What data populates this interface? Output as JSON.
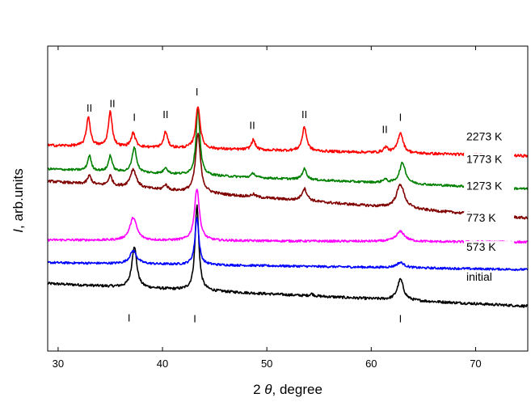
{
  "chart_data": {
    "type": "line",
    "title": "",
    "xlabel": "2 θ, degree",
    "xlabel_prefix": "2 ",
    "xlabel_symbol": "θ",
    "xlabel_suffix": ", degree",
    "ylabel": "I, arb.units",
    "ylabel_symbol": "I",
    "ylabel_suffix": ", arb.units",
    "xlim": [
      29,
      75
    ],
    "ylim": [
      0,
      7
    ],
    "xticks": [
      30,
      40,
      50,
      60,
      70
    ],
    "yticks_shown": false,
    "grid": false,
    "baseline_peak_shape": "lorentzian",
    "series": [
      {
        "name": "initial",
        "color": "#000000",
        "baseline_left": 1.55,
        "baseline_right": 1.03,
        "noise": 0.03,
        "peaks": [
          {
            "x": 37.3,
            "height": 0.95,
            "width": 0.28
          },
          {
            "x": 43.3,
            "height": 1.95,
            "width": 0.22
          },
          {
            "x": 54.3,
            "height": 0.05,
            "width": 0.2
          },
          {
            "x": 62.8,
            "height": 0.48,
            "width": 0.35
          }
        ]
      },
      {
        "name": "573 K",
        "color": "#0000ff",
        "baseline_left": 2.03,
        "baseline_right": 1.87,
        "noise": 0.025,
        "peaks": [
          {
            "x": 37.2,
            "height": 0.3,
            "width": 0.4
          },
          {
            "x": 43.3,
            "height": 1.1,
            "width": 0.22
          },
          {
            "x": 62.8,
            "height": 0.12,
            "width": 0.45
          }
        ]
      },
      {
        "name": "773 K",
        "color": "#ff00ff",
        "baseline_left": 2.55,
        "baseline_right": 2.5,
        "noise": 0.025,
        "peaks": [
          {
            "x": 37.2,
            "height": 0.52,
            "width": 0.4
          },
          {
            "x": 43.3,
            "height": 1.2,
            "width": 0.28
          },
          {
            "x": 62.8,
            "height": 0.23,
            "width": 0.5
          }
        ]
      },
      {
        "name": "1273 K",
        "color": "#800000",
        "baseline_left": 3.9,
        "baseline_right": 3.05,
        "noise": 0.03,
        "peaks": [
          {
            "x": 33.0,
            "height": 0.2,
            "width": 0.22
          },
          {
            "x": 35.0,
            "height": 0.23,
            "width": 0.22
          },
          {
            "x": 37.2,
            "height": 0.42,
            "width": 0.35
          },
          {
            "x": 40.3,
            "height": 0.12,
            "width": 0.22
          },
          {
            "x": 43.4,
            "height": 1.35,
            "width": 0.28
          },
          {
            "x": 48.7,
            "height": 0.06,
            "width": 0.25
          },
          {
            "x": 53.6,
            "height": 0.28,
            "width": 0.3
          },
          {
            "x": 62.8,
            "height": 0.55,
            "width": 0.45
          }
        ]
      },
      {
        "name": "1773 K",
        "color": "#008000",
        "baseline_left": 4.18,
        "baseline_right": 3.72,
        "noise": 0.025,
        "peaks": [
          {
            "x": 33.0,
            "height": 0.35,
            "width": 0.2
          },
          {
            "x": 35.0,
            "height": 0.37,
            "width": 0.2
          },
          {
            "x": 37.3,
            "height": 0.58,
            "width": 0.25
          },
          {
            "x": 40.3,
            "height": 0.15,
            "width": 0.2
          },
          {
            "x": 43.4,
            "height": 1.55,
            "width": 0.22
          },
          {
            "x": 48.7,
            "height": 0.1,
            "width": 0.2
          },
          {
            "x": 53.6,
            "height": 0.25,
            "width": 0.25
          },
          {
            "x": 61.3,
            "height": 0.08,
            "width": 0.25
          },
          {
            "x": 63.0,
            "height": 0.48,
            "width": 0.35
          }
        ]
      },
      {
        "name": "2273 K",
        "color": "#ff0000",
        "baseline_left": 4.72,
        "baseline_right": 4.48,
        "noise": 0.03,
        "peaks": [
          {
            "x": 32.9,
            "height": 0.68,
            "width": 0.22
          },
          {
            "x": 35.0,
            "height": 0.8,
            "width": 0.22
          },
          {
            "x": 37.2,
            "height": 0.32,
            "width": 0.25
          },
          {
            "x": 40.3,
            "height": 0.37,
            "width": 0.22
          },
          {
            "x": 43.4,
            "height": 0.98,
            "width": 0.25
          },
          {
            "x": 48.7,
            "height": 0.23,
            "width": 0.22
          },
          {
            "x": 53.6,
            "height": 0.55,
            "width": 0.25
          },
          {
            "x": 61.4,
            "height": 0.12,
            "width": 0.25
          },
          {
            "x": 62.8,
            "height": 0.47,
            "width": 0.3
          }
        ]
      }
    ],
    "series_labels": [
      {
        "text": "2273 K",
        "y": 4.84
      },
      {
        "text": "1773 K",
        "y": 4.32
      },
      {
        "text": "1273 K",
        "y": 3.7
      },
      {
        "text": "773 K",
        "y": 2.97
      },
      {
        "text": "573 K",
        "y": 2.3
      },
      {
        "text": "initial",
        "y": 1.62
      }
    ],
    "peak_labels": [
      {
        "text": "II",
        "x": 33.0,
        "y": 5.5
      },
      {
        "text": "II",
        "x": 35.2,
        "y": 5.6
      },
      {
        "text": "I",
        "x": 37.3,
        "y": 5.28
      },
      {
        "text": "II",
        "x": 40.3,
        "y": 5.35
      },
      {
        "text": "I",
        "x": 43.3,
        "y": 5.87
      },
      {
        "text": "II",
        "x": 48.6,
        "y": 5.1
      },
      {
        "text": "II",
        "x": 53.6,
        "y": 5.35
      },
      {
        "text": "II",
        "x": 61.3,
        "y": 5.0
      },
      {
        "text": "I",
        "x": 62.8,
        "y": 5.28
      },
      {
        "text": "I",
        "x": 36.8,
        "y": 0.68
      },
      {
        "text": "I",
        "x": 43.1,
        "y": 0.66
      },
      {
        "text": "I",
        "x": 62.8,
        "y": 0.66
      }
    ]
  }
}
